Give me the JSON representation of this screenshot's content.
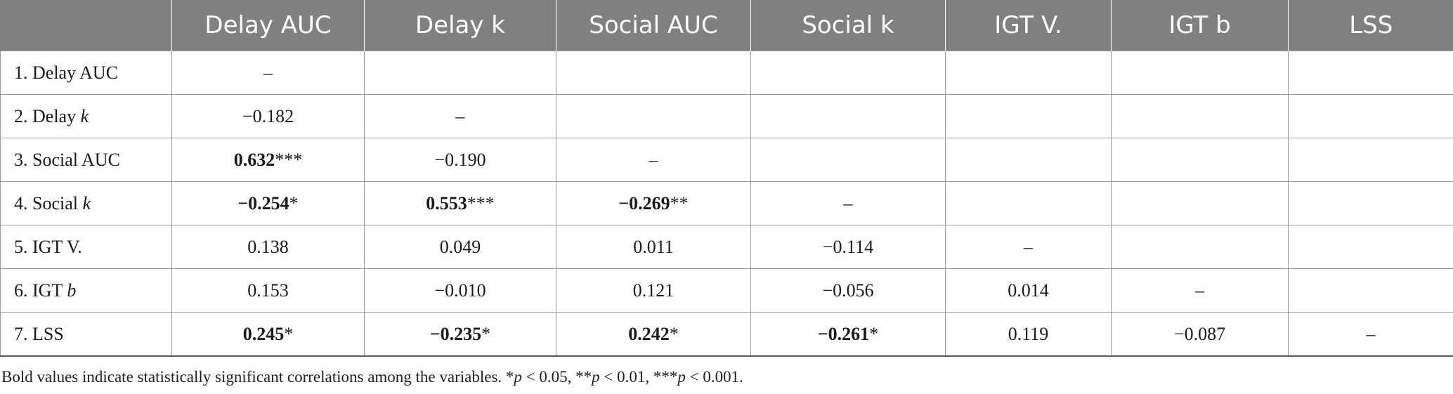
{
  "columns": [
    "",
    "Delay AUC",
    "Delay k",
    "Social AUC",
    "Social k",
    "IGT V.",
    "IGT b",
    "LSS"
  ],
  "rows": [
    {
      "label_prefix": "1. Delay AUC",
      "label_italic": "",
      "cells": [
        {
          "v": "–",
          "s": "",
          "b": false
        },
        {
          "v": "",
          "s": "",
          "b": false
        },
        {
          "v": "",
          "s": "",
          "b": false
        },
        {
          "v": "",
          "s": "",
          "b": false
        },
        {
          "v": "",
          "s": "",
          "b": false
        },
        {
          "v": "",
          "s": "",
          "b": false
        },
        {
          "v": "",
          "s": "",
          "b": false
        }
      ]
    },
    {
      "label_prefix": "2. Delay ",
      "label_italic": "k",
      "cells": [
        {
          "v": "−0.182",
          "s": "",
          "b": false
        },
        {
          "v": "–",
          "s": "",
          "b": false
        },
        {
          "v": "",
          "s": "",
          "b": false
        },
        {
          "v": "",
          "s": "",
          "b": false
        },
        {
          "v": "",
          "s": "",
          "b": false
        },
        {
          "v": "",
          "s": "",
          "b": false
        },
        {
          "v": "",
          "s": "",
          "b": false
        }
      ]
    },
    {
      "label_prefix": "3. Social AUC",
      "label_italic": "",
      "cells": [
        {
          "v": "0.632",
          "s": "***",
          "b": true
        },
        {
          "v": "−0.190",
          "s": "",
          "b": false
        },
        {
          "v": "–",
          "s": "",
          "b": false
        },
        {
          "v": "",
          "s": "",
          "b": false
        },
        {
          "v": "",
          "s": "",
          "b": false
        },
        {
          "v": "",
          "s": "",
          "b": false
        },
        {
          "v": "",
          "s": "",
          "b": false
        }
      ]
    },
    {
      "label_prefix": "4. Social ",
      "label_italic": "k",
      "cells": [
        {
          "v": "−0.254",
          "s": "*",
          "b": true
        },
        {
          "v": "0.553",
          "s": "***",
          "b": true
        },
        {
          "v": "−0.269",
          "s": "**",
          "b": true
        },
        {
          "v": "–",
          "s": "",
          "b": false
        },
        {
          "v": "",
          "s": "",
          "b": false
        },
        {
          "v": "",
          "s": "",
          "b": false
        },
        {
          "v": "",
          "s": "",
          "b": false
        }
      ]
    },
    {
      "label_prefix": "5. IGT V.",
      "label_italic": "",
      "cells": [
        {
          "v": "0.138",
          "s": "",
          "b": false
        },
        {
          "v": "0.049",
          "s": "",
          "b": false
        },
        {
          "v": "0.011",
          "s": "",
          "b": false
        },
        {
          "v": "−0.114",
          "s": "",
          "b": false
        },
        {
          "v": "–",
          "s": "",
          "b": false
        },
        {
          "v": "",
          "s": "",
          "b": false
        },
        {
          "v": "",
          "s": "",
          "b": false
        }
      ]
    },
    {
      "label_prefix": "6. IGT ",
      "label_italic": "b",
      "cells": [
        {
          "v": "0.153",
          "s": "",
          "b": false
        },
        {
          "v": "−0.010",
          "s": "",
          "b": false
        },
        {
          "v": "0.121",
          "s": "",
          "b": false
        },
        {
          "v": "−0.056",
          "s": "",
          "b": false
        },
        {
          "v": "0.014",
          "s": "",
          "b": false
        },
        {
          "v": "–",
          "s": "",
          "b": false
        },
        {
          "v": "",
          "s": "",
          "b": false
        }
      ]
    },
    {
      "label_prefix": "7. LSS",
      "label_italic": "",
      "cells": [
        {
          "v": "0.245",
          "s": "*",
          "b": true
        },
        {
          "v": "−0.235",
          "s": "*",
          "b": true
        },
        {
          "v": "0.242",
          "s": "*",
          "b": true
        },
        {
          "v": "−0.261",
          "s": "*",
          "b": true
        },
        {
          "v": "0.119",
          "s": "",
          "b": false
        },
        {
          "v": "−0.087",
          "s": "",
          "b": false
        },
        {
          "v": "–",
          "s": "",
          "b": false
        }
      ]
    }
  ],
  "footnote": {
    "parts": [
      {
        "t": "Bold values indicate statistically significant correlations among the variables. *",
        "i": false
      },
      {
        "t": "p",
        "i": true
      },
      {
        "t": " < 0.05, **",
        "i": false
      },
      {
        "t": "p",
        "i": true
      },
      {
        "t": " < 0.01, ***",
        "i": false
      },
      {
        "t": "p",
        "i": true
      },
      {
        "t": " < 0.001.",
        "i": false
      }
    ]
  }
}
